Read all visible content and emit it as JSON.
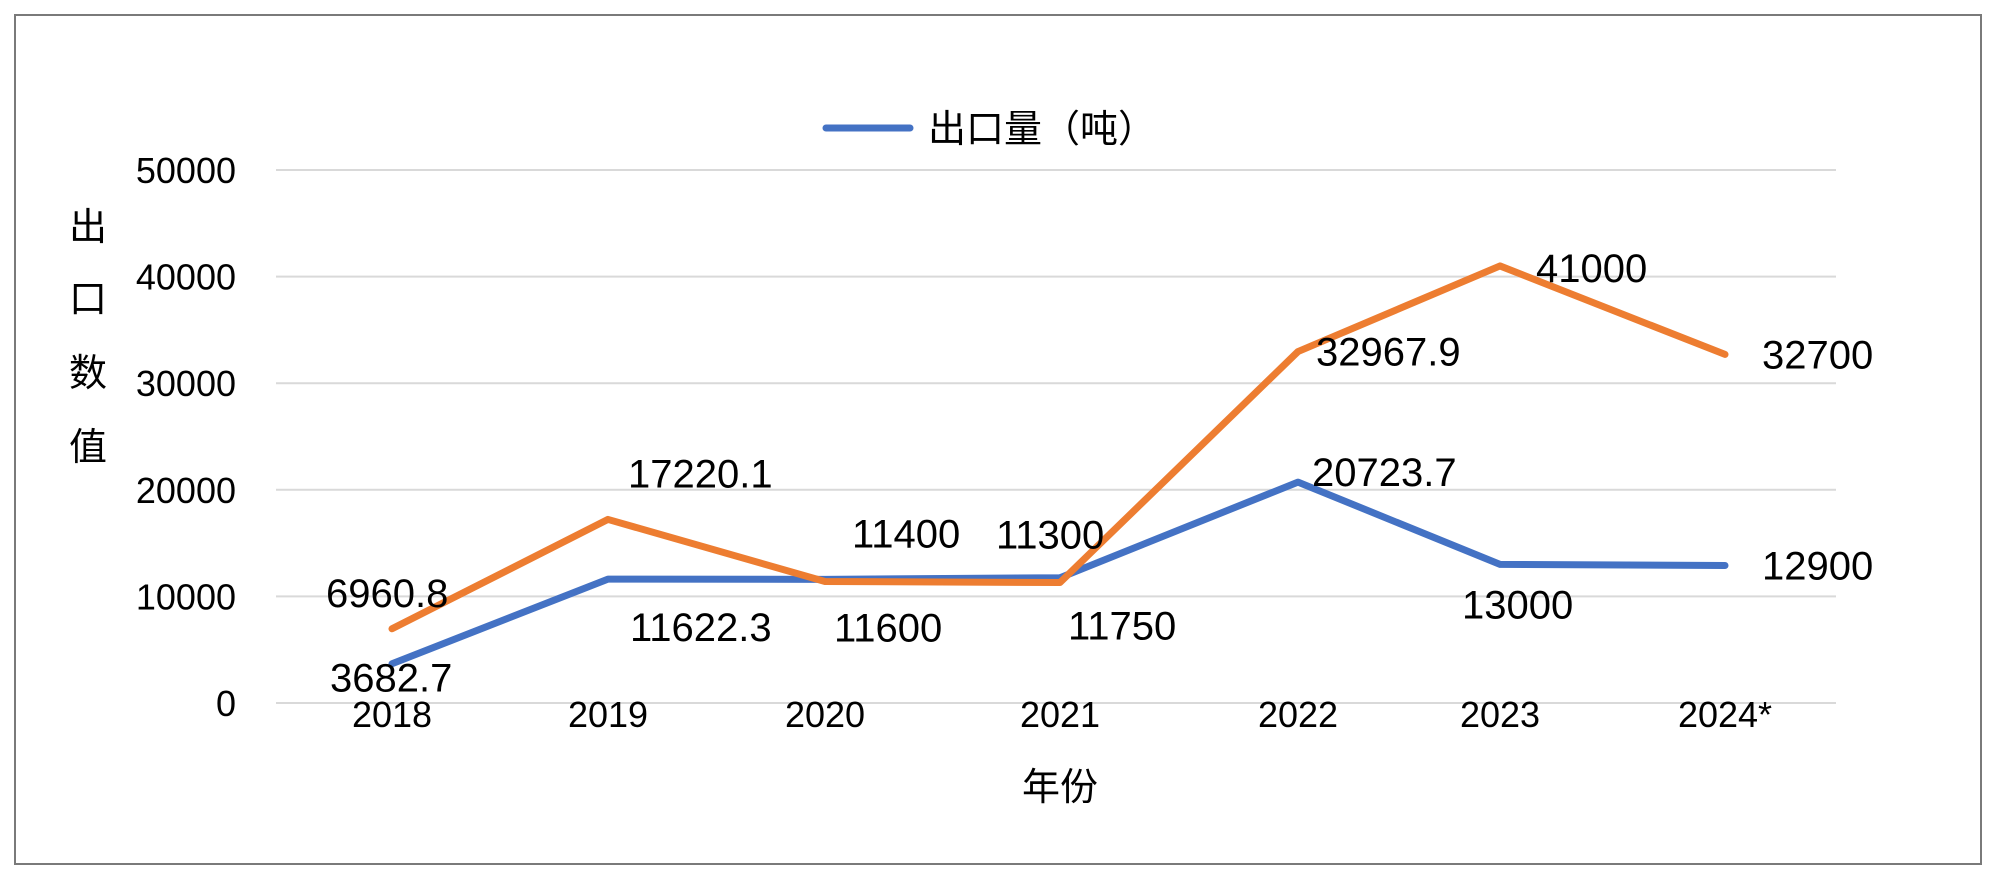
{
  "chart_data": {
    "type": "line",
    "title": "",
    "xlabel": "年份",
    "ylabel": "出口数值",
    "ylim": [
      0,
      50000
    ],
    "yticks": [
      0,
      10000,
      20000,
      30000,
      40000,
      50000
    ],
    "grid": true,
    "legend_position": "top-center",
    "categories": [
      "2018",
      "2019",
      "2020",
      "2021",
      "2022",
      "2023",
      "2024*"
    ],
    "series": [
      {
        "name": "出口量（吨）",
        "color": "#4472c4",
        "values": [
          3682.7,
          11622.3,
          11600,
          11750,
          20723.7,
          13000,
          12900
        ],
        "labels": [
          "3682.7",
          "11622.3",
          "11600",
          "11750",
          "20723.7",
          "13000",
          "12900"
        ]
      },
      {
        "color": "#ed7d31",
        "values": [
          6960.8,
          17220.1,
          11400,
          11300,
          32967.9,
          41000,
          32700
        ],
        "labels": [
          "6960.8",
          "17220.1",
          "11400",
          "11300",
          "32967.9",
          "41000",
          "32700"
        ]
      }
    ]
  }
}
